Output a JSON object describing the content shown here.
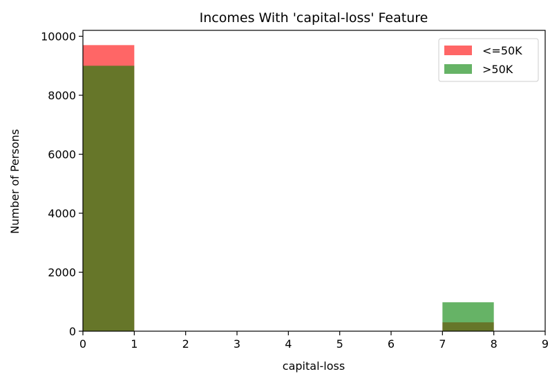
{
  "chart_data": {
    "type": "bar",
    "title": "Incomes With 'capital-loss' Feature",
    "xlabel": "capital-loss",
    "ylabel": "Number of Persons",
    "xlim": [
      0,
      9
    ],
    "ylim": [
      0,
      10200
    ],
    "xticks": [
      "0",
      "1",
      "2",
      "3",
      "4",
      "5",
      "6",
      "7",
      "8",
      "9"
    ],
    "yticks": [
      "0",
      "2000",
      "4000",
      "6000",
      "8000",
      "10000"
    ],
    "grid": false,
    "legend_position": "top-right",
    "series": [
      {
        "name": "<=50K",
        "color": "#ff0000",
        "opacity": 0.6,
        "bins": [
          {
            "x_start": 0,
            "x_end": 1,
            "value": 9700
          },
          {
            "x_start": 7,
            "x_end": 8,
            "value": 300
          }
        ]
      },
      {
        "name": ">50K",
        "color": "#008000",
        "opacity": 0.6,
        "bins": [
          {
            "x_start": 0,
            "x_end": 1,
            "value": 9000
          },
          {
            "x_start": 7,
            "x_end": 8,
            "value": 980
          }
        ]
      }
    ]
  }
}
